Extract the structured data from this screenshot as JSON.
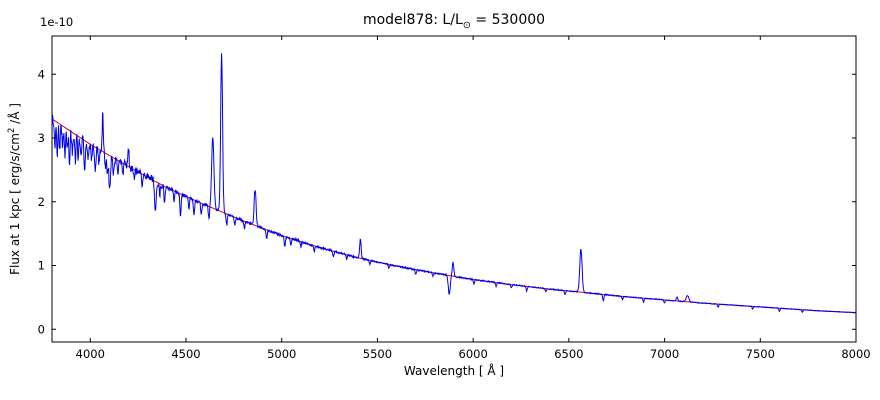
{
  "figure": {
    "title_prefix": "model878: L/L",
    "title_sub": "⊙",
    "title_suffix": " = 530000",
    "offset_text": "1e-10",
    "xlabel": "Wavelength [ Å ]",
    "ylabel_prefix": "Flux at 1 kpc [ erg/s/cm",
    "ylabel_sup": "2",
    "ylabel_suffix": " /Å ]"
  },
  "chart_data": {
    "type": "line",
    "title": "model878: L/L⊙ = 530000",
    "xlabel": "Wavelength [ Å ]",
    "ylabel": "Flux at 1 kpc [ erg/s/cm² /Å ]",
    "y_offset_scale": "1e-10",
    "xlim": [
      3800,
      8000
    ],
    "ylim": [
      -0.2,
      4.6
    ],
    "x_ticks": [
      4000,
      4500,
      5000,
      5500,
      6000,
      6500,
      7000,
      7500,
      8000
    ],
    "y_ticks": [
      0,
      1,
      2,
      3,
      4
    ],
    "grid": false,
    "legend": "none",
    "series": [
      {
        "name": "model spectrum",
        "color": "#0000ee",
        "description": "blue synthetic spectrum with emission and absorption lines plus noise"
      },
      {
        "name": "continuum fit",
        "color": "#e00000",
        "description": "smooth red continuum curve under the spectrum"
      }
    ],
    "continuum": {
      "x": [
        3800,
        4000,
        4200,
        4400,
        4600,
        4800,
        5000,
        5200,
        5400,
        5600,
        5800,
        6000,
        6200,
        6400,
        6600,
        6800,
        7000,
        7200,
        7400,
        7600,
        7800,
        8000
      ],
      "y": [
        3.3,
        2.9,
        2.55,
        2.22,
        1.95,
        1.7,
        1.47,
        1.28,
        1.12,
        0.99,
        0.88,
        0.78,
        0.7,
        0.63,
        0.57,
        0.51,
        0.46,
        0.41,
        0.37,
        0.33,
        0.29,
        0.26
      ]
    },
    "noise_amplitude": 0.013,
    "spectral_lines": [
      {
        "center": 3815,
        "width": 3,
        "amplitude": -0.38
      },
      {
        "center": 3827,
        "width": 3,
        "amplitude": -0.52
      },
      {
        "center": 3840,
        "width": 3,
        "amplitude": -0.42
      },
      {
        "center": 3855,
        "width": 3,
        "amplitude": -0.3
      },
      {
        "center": 3868,
        "width": 3,
        "amplitude": -0.48
      },
      {
        "center": 3880,
        "width": 3,
        "amplitude": -0.32
      },
      {
        "center": 3891,
        "width": 3,
        "amplitude": -0.55
      },
      {
        "center": 3906,
        "width": 3,
        "amplitude": -0.3
      },
      {
        "center": 3922,
        "width": 3,
        "amplitude": -0.42
      },
      {
        "center": 3936,
        "width": 3,
        "amplitude": -0.36
      },
      {
        "center": 3952,
        "width": 3,
        "amplitude": -0.25
      },
      {
        "center": 3970,
        "width": 3,
        "amplitude": -0.52
      },
      {
        "center": 3988,
        "width": 3,
        "amplitude": -0.28
      },
      {
        "center": 4006,
        "width": 3,
        "amplitude": -0.24
      },
      {
        "center": 4026,
        "width": 3,
        "amplitude": -0.42
      },
      {
        "center": 4046,
        "width": 3,
        "amplitude": -0.22
      },
      {
        "center": 4065,
        "width": 3,
        "amplitude": 0.55
      },
      {
        "center": 4078,
        "width": 3,
        "amplitude": -0.25
      },
      {
        "center": 4089,
        "width": 3,
        "amplitude": -0.28
      },
      {
        "center": 4101,
        "width": 4,
        "amplitude": -0.55
      },
      {
        "center": 4121,
        "width": 3,
        "amplitude": -0.24
      },
      {
        "center": 4144,
        "width": 3,
        "amplitude": -0.28
      },
      {
        "center": 4170,
        "width": 3,
        "amplitude": -0.18
      },
      {
        "center": 4200,
        "width": 3,
        "amplitude": 0.28
      },
      {
        "center": 4230,
        "width": 3,
        "amplitude": -0.15
      },
      {
        "center": 4271,
        "width": 3,
        "amplitude": -0.18
      },
      {
        "center": 4340,
        "width": 4,
        "amplitude": -0.5
      },
      {
        "center": 4363,
        "width": 3,
        "amplitude": -0.18
      },
      {
        "center": 4388,
        "width": 3,
        "amplitude": -0.26
      },
      {
        "center": 4438,
        "width": 3,
        "amplitude": -0.16
      },
      {
        "center": 4471,
        "width": 3,
        "amplitude": -0.38
      },
      {
        "center": 4515,
        "width": 3,
        "amplitude": -0.18
      },
      {
        "center": 4542,
        "width": 3,
        "amplitude": -0.26
      },
      {
        "center": 4580,
        "width": 3,
        "amplitude": -0.18
      },
      {
        "center": 4620,
        "width": 3,
        "amplitude": -0.2
      },
      {
        "center": 4640,
        "width": 6,
        "amplitude": 1.1
      },
      {
        "center": 4686,
        "width": 5,
        "amplitude": 2.45
      },
      {
        "center": 4713,
        "width": 3,
        "amplitude": -0.18
      },
      {
        "center": 4755,
        "width": 3,
        "amplitude": -0.12
      },
      {
        "center": 4805,
        "width": 3,
        "amplitude": -0.12
      },
      {
        "center": 4861,
        "width": 5,
        "amplitude": 0.57
      },
      {
        "center": 4921,
        "width": 3,
        "amplitude": -0.14
      },
      {
        "center": 5016,
        "width": 3,
        "amplitude": -0.16
      },
      {
        "center": 5048,
        "width": 3,
        "amplitude": -0.09
      },
      {
        "center": 5100,
        "width": 3,
        "amplitude": -0.08
      },
      {
        "center": 5170,
        "width": 3,
        "amplitude": -0.1
      },
      {
        "center": 5270,
        "width": 3,
        "amplitude": -0.08
      },
      {
        "center": 5340,
        "width": 3,
        "amplitude": -0.07
      },
      {
        "center": 5411,
        "width": 4,
        "amplitude": 0.3
      },
      {
        "center": 5460,
        "width": 3,
        "amplitude": -0.07
      },
      {
        "center": 5560,
        "width": 3,
        "amplitude": -0.06
      },
      {
        "center": 5700,
        "width": 3,
        "amplitude": -0.07
      },
      {
        "center": 5790,
        "width": 3,
        "amplitude": -0.06
      },
      {
        "center": 5875,
        "width": 5,
        "amplitude": -0.3
      },
      {
        "center": 5895,
        "width": 4,
        "amplitude": 0.22
      },
      {
        "center": 6004,
        "width": 3,
        "amplitude": -0.07
      },
      {
        "center": 6120,
        "width": 3,
        "amplitude": -0.06
      },
      {
        "center": 6200,
        "width": 3,
        "amplitude": -0.05
      },
      {
        "center": 6280,
        "width": 3,
        "amplitude": -0.07
      },
      {
        "center": 6380,
        "width": 3,
        "amplitude": -0.05
      },
      {
        "center": 6480,
        "width": 3,
        "amplitude": -0.06
      },
      {
        "center": 6563,
        "width": 6,
        "amplitude": 0.68
      },
      {
        "center": 6680,
        "width": 3,
        "amplitude": -0.1
      },
      {
        "center": 6780,
        "width": 3,
        "amplitude": -0.05
      },
      {
        "center": 6890,
        "width": 3,
        "amplitude": -0.06
      },
      {
        "center": 7000,
        "width": 3,
        "amplitude": -0.05
      },
      {
        "center": 7065,
        "width": 4,
        "amplitude": 0.06
      },
      {
        "center": 7120,
        "width": 7,
        "amplitude": 0.1
      },
      {
        "center": 7280,
        "width": 3,
        "amplitude": -0.05
      },
      {
        "center": 7460,
        "width": 3,
        "amplitude": -0.04
      },
      {
        "center": 7600,
        "width": 3,
        "amplitude": -0.05
      },
      {
        "center": 7720,
        "width": 3,
        "amplitude": -0.04
      }
    ]
  }
}
